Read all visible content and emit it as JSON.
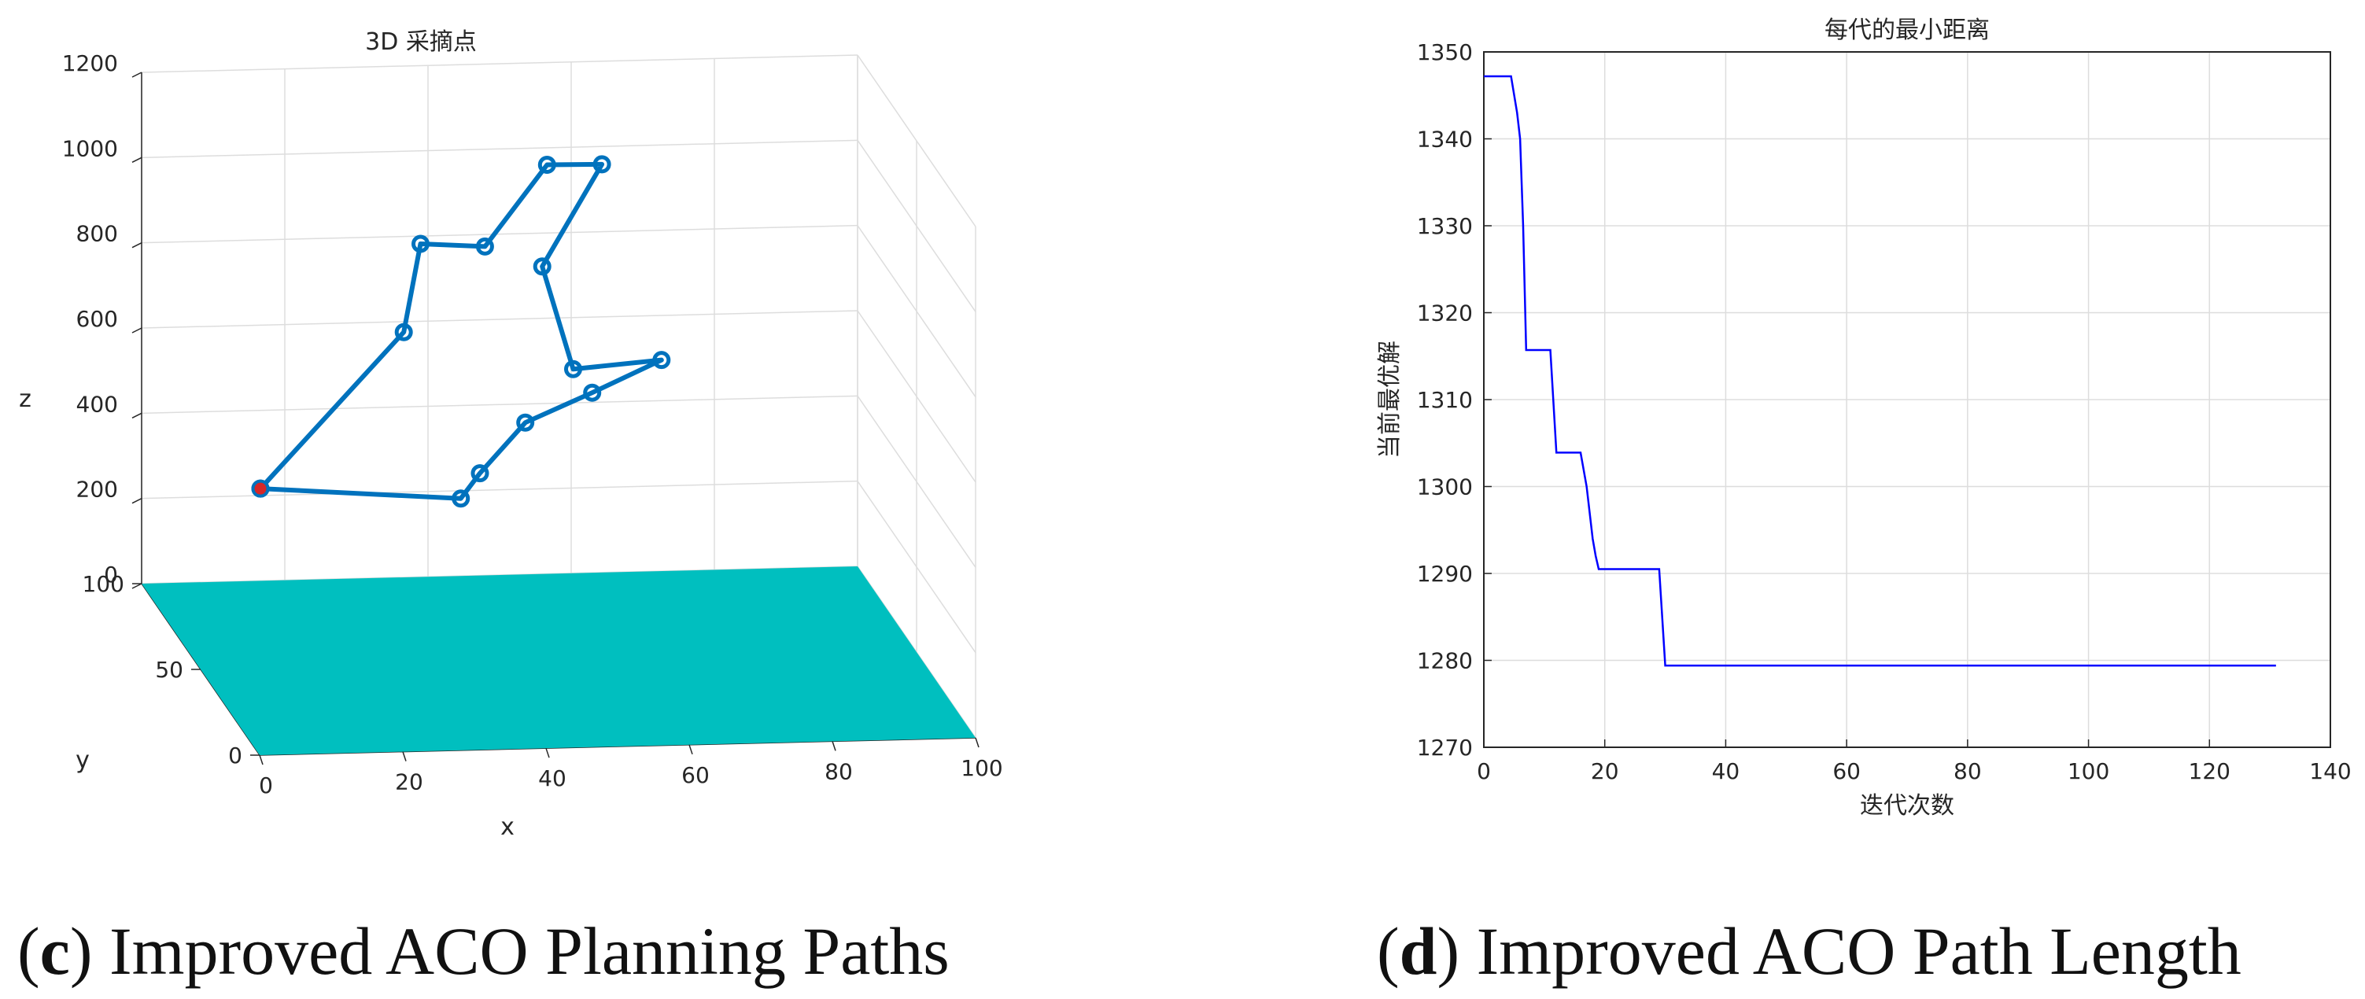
{
  "chart_data": [
    {
      "type": "line3d",
      "title": "3D 采摘点",
      "xlabel": "x",
      "ylabel": "y",
      "zlabel": "z",
      "xlim": [
        0,
        100
      ],
      "ylim": [
        0,
        100
      ],
      "zlim": [
        0,
        1200
      ],
      "xticks": [
        0,
        20,
        40,
        60,
        80,
        100
      ],
      "yticks": [
        0,
        50,
        100
      ],
      "zticks": [
        0,
        200,
        400,
        600,
        800,
        1000,
        1200
      ],
      "grid": true,
      "colors": {
        "path": "#0072BD",
        "start": "#D62728",
        "surface": "#00BFBF"
      },
      "points": [
        {
          "x": 10,
          "y": 60,
          "z": 380
        },
        {
          "x": 32,
          "y": 72,
          "z": 690
        },
        {
          "x": 35,
          "y": 76,
          "z": 880
        },
        {
          "x": 44,
          "y": 76,
          "z": 870
        },
        {
          "x": 53,
          "y": 78,
          "z": 1050
        },
        {
          "x": 61,
          "y": 80,
          "z": 1040
        },
        {
          "x": 52,
          "y": 76,
          "z": 820
        },
        {
          "x": 55,
          "y": 68,
          "z": 610
        },
        {
          "x": 68,
          "y": 72,
          "z": 610
        },
        {
          "x": 57,
          "y": 64,
          "z": 570
        },
        {
          "x": 47,
          "y": 60,
          "z": 520
        },
        {
          "x": 40,
          "y": 56,
          "z": 420
        },
        {
          "x": 37,
          "y": 54,
          "z": 370
        },
        {
          "x": 10,
          "y": 60,
          "z": 380
        }
      ],
      "start_point": {
        "x": 10,
        "y": 60,
        "z": 380
      },
      "caption_letter": "c",
      "caption_text": " Improved ACO Planning Paths"
    },
    {
      "type": "line",
      "title": "每代的最小距离",
      "xlabel": "迭代次数",
      "ylabel": "当前最优解",
      "xlim": [
        0,
        140
      ],
      "ylim": [
        1270,
        1350
      ],
      "xticks": [
        0,
        20,
        40,
        60,
        80,
        100,
        120,
        140
      ],
      "yticks": [
        1270,
        1280,
        1290,
        1300,
        1310,
        1320,
        1330,
        1340,
        1350
      ],
      "grid": true,
      "colors": {
        "line": "#0000FF"
      },
      "series": [
        {
          "x": [
            0,
            4.5,
            5.5,
            6,
            6.5,
            7,
            11,
            12,
            16,
            17,
            17.5,
            18,
            18.5,
            19,
            29,
            30,
            131
          ],
          "y": [
            1347.2,
            1347.2,
            1343,
            1340,
            1330,
            1315.7,
            1315.7,
            1303.9,
            1303.9,
            1300,
            1297,
            1294,
            1292,
            1290.5,
            1290.5,
            1279.4,
            1279.4
          ]
        }
      ],
      "caption_letter": "d",
      "caption_text": " Improved ACO Path Length"
    }
  ]
}
